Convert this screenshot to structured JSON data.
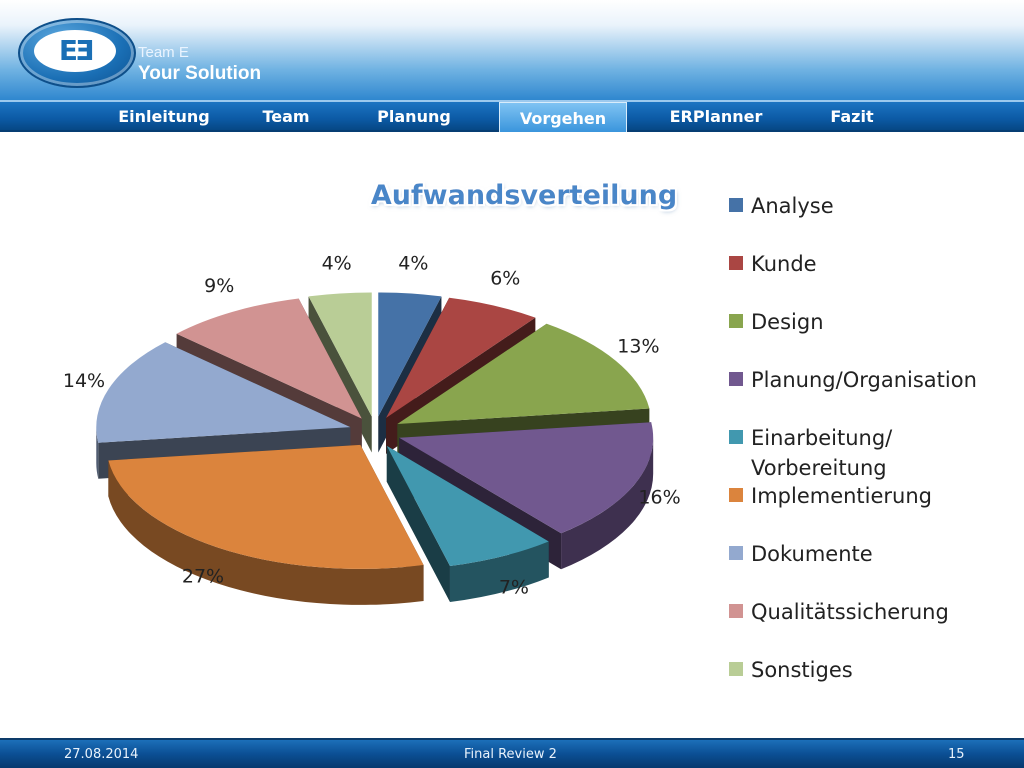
{
  "brand": {
    "line1": "Team E",
    "line2": "Your Solution",
    "logo_mark": "EƎ"
  },
  "nav": {
    "tabs": [
      {
        "label": "Einleitung"
      },
      {
        "label": "Team"
      },
      {
        "label": "Planung"
      },
      {
        "label": "Vorgehen"
      },
      {
        "label": "ERPlanner"
      },
      {
        "label": "Fazit"
      }
    ],
    "active": "Vorgehen"
  },
  "footer": {
    "date": "27.08.2014",
    "title": "Final Review 2",
    "page": "15"
  },
  "chart_data": {
    "type": "pie",
    "style": "3d-exploded",
    "title": "Aufwandsverteilung",
    "legend_position": "right",
    "slices": [
      {
        "name": "Analyse",
        "value": 4,
        "label": "4%",
        "color": "#4572a7"
      },
      {
        "name": "Kunde",
        "value": 6,
        "label": "6%",
        "color": "#aa4643"
      },
      {
        "name": "Design",
        "value": 13,
        "label": "13%",
        "color": "#89a54e"
      },
      {
        "name": "Planung/Organisation",
        "value": 16,
        "label": "16%",
        "color": "#71588f"
      },
      {
        "name": "Einarbeitung/ Vorbereitung",
        "value": 7,
        "label": "7%",
        "color": "#4198af"
      },
      {
        "name": "Implementierung",
        "value": 27,
        "label": "27%",
        "color": "#db843d"
      },
      {
        "name": "Dokumente",
        "value": 14,
        "label": "14%",
        "color": "#93a9cf"
      },
      {
        "name": "Qualitätssicherung",
        "value": 9,
        "label": "9%",
        "color": "#d19392"
      },
      {
        "name": "Sonstiges",
        "value": 4,
        "label": "4%",
        "color": "#b9cd96"
      }
    ]
  }
}
